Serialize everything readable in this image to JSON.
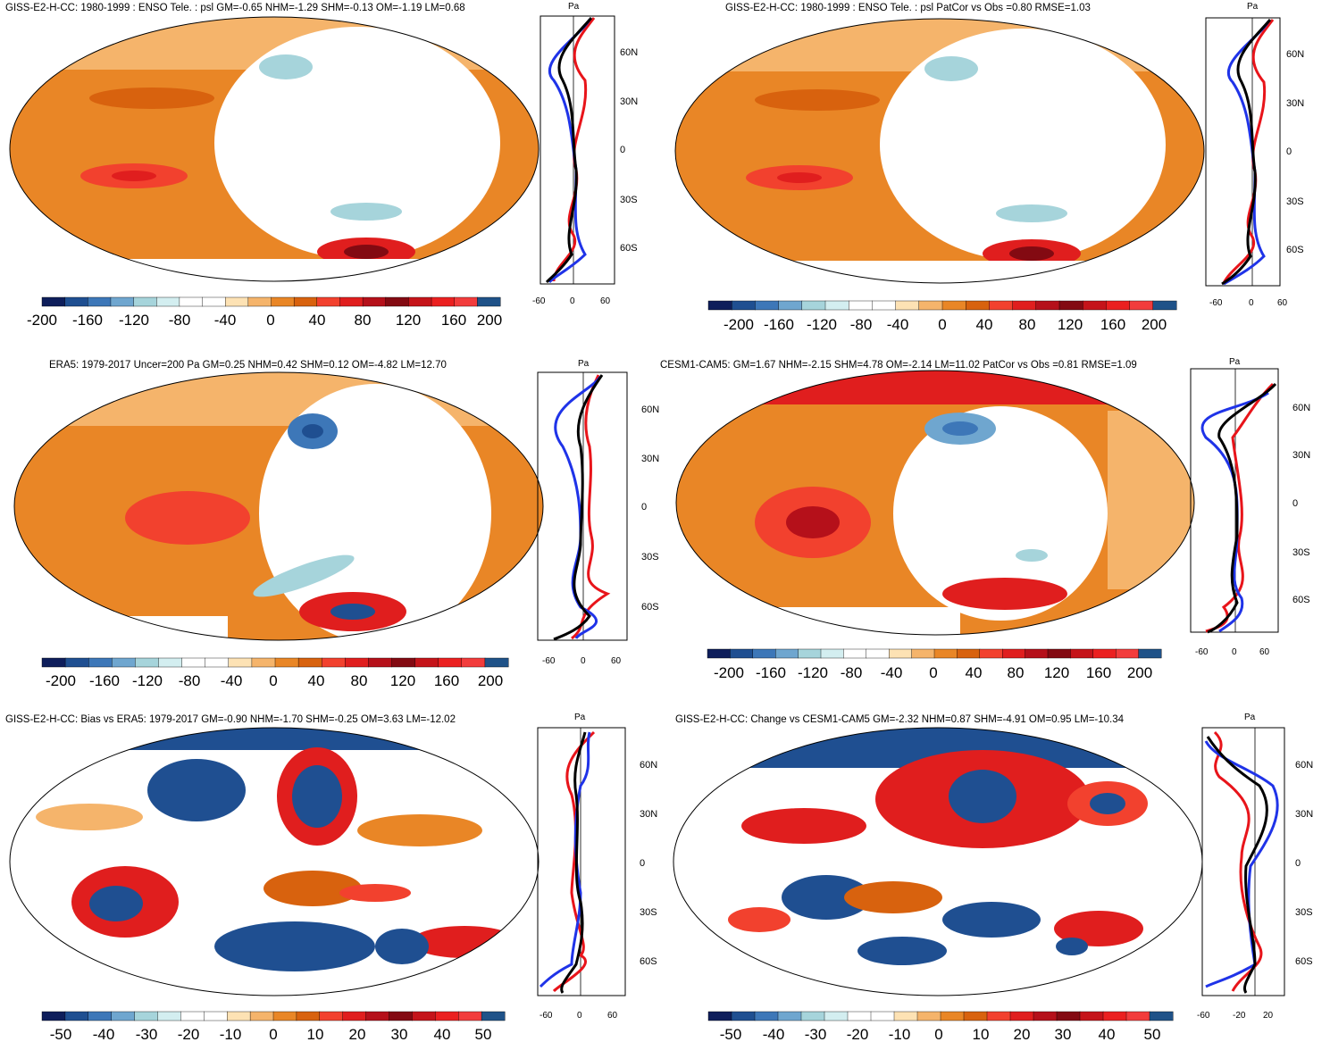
{
  "figure": {
    "description_units": "Pa"
  },
  "colorbars": {
    "large": {
      "labels": [
        "-200",
        "-160",
        "-120",
        "-80",
        "-40",
        "0",
        "40",
        "80",
        "120",
        "160",
        "200"
      ],
      "colors": [
        "#0e1e5b",
        "#1f4f91",
        "#3d77b8",
        "#6fa6cf",
        "#a6d4db",
        "#d3eef0",
        "#ffffff",
        "#ffffff",
        "#fde2b4",
        "#f5b46b",
        "#e98626",
        "#d8620e",
        "#f2412e",
        "#e01e1e",
        "#b5101a",
        "#830a12",
        "#c5141a",
        "#eb2020",
        "#f23c3c",
        "#1f5288"
      ]
    },
    "small": {
      "labels": [
        "-50",
        "-40",
        "-30",
        "-20",
        "-10",
        "0",
        "10",
        "20",
        "30",
        "40",
        "50"
      ],
      "colors": [
        "#0e1e5b",
        "#1f4f91",
        "#3d77b8",
        "#6fa6cf",
        "#a6d4db",
        "#d3eef0",
        "#ffffff",
        "#ffffff",
        "#fde2b4",
        "#f5b46b",
        "#e98626",
        "#d8620e",
        "#f2412e",
        "#e01e1e",
        "#b5101a",
        "#830a12",
        "#c5141a",
        "#eb2020",
        "#f23c3c",
        "#1f5288"
      ]
    }
  },
  "chart_data": [
    {
      "type": "heatmap",
      "title": "GISS-E2-H-CC: 1980-1999 : ENSO Tele. : psl GM=-0.65 NHM=-1.29 SHM=-0.13 OM=-1.19 LM=0.68",
      "colorbar": "large",
      "zonal_profile": {
        "type": "line",
        "units_label": "Pa",
        "x_ticks": [
          "-60",
          "0",
          "60"
        ],
        "lat_ticks": [
          "60N",
          "30N",
          "0",
          "30S",
          "60S"
        ],
        "series": [
          {
            "name": "blue",
            "color": "#1f33e8"
          },
          {
            "name": "red",
            "color": "#e8141a"
          },
          {
            "name": "black",
            "color": "#000000"
          }
        ]
      }
    },
    {
      "type": "heatmap",
      "title": "GISS-E2-H-CC: 1980-1999 : ENSO Tele. : psl PatCor vs Obs =0.80 RMSE=1.03",
      "colorbar": "large",
      "zonal_profile": {
        "type": "line",
        "units_label": "Pa",
        "x_ticks": [
          "-60",
          "0",
          "60"
        ],
        "lat_ticks": [
          "60N",
          "30N",
          "0",
          "30S",
          "60S"
        ],
        "series": [
          {
            "name": "blue",
            "color": "#1f33e8"
          },
          {
            "name": "red",
            "color": "#e8141a"
          },
          {
            "name": "black",
            "color": "#000000"
          }
        ]
      }
    },
    {
      "type": "heatmap",
      "title": "ERA5: 1979-2017 Uncer=200 Pa GM=0.25 NHM=0.42 SHM=0.12 OM=-4.82 LM=12.70",
      "colorbar": "large",
      "zonal_profile": {
        "type": "line",
        "units_label": "Pa",
        "x_ticks": [
          "-60",
          "0",
          "60"
        ],
        "lat_ticks": [
          "60N",
          "30N",
          "0",
          "30S",
          "60S"
        ],
        "series": [
          {
            "name": "blue",
            "color": "#1f33e8"
          },
          {
            "name": "red",
            "color": "#e8141a"
          },
          {
            "name": "black",
            "color": "#000000"
          }
        ]
      }
    },
    {
      "type": "heatmap",
      "title": "CESM1-CAM5: GM=1.67 NHM=-2.15 SHM=4.78 OM=-2.14 LM=11.02 PatCor vs Obs =0.81 RMSE=1.09",
      "colorbar": "large",
      "zonal_profile": {
        "type": "line",
        "units_label": "Pa",
        "x_ticks": [
          "-60",
          "0",
          "60"
        ],
        "lat_ticks": [
          "60N",
          "30N",
          "0",
          "30S",
          "60S"
        ],
        "series": [
          {
            "name": "blue",
            "color": "#1f33e8"
          },
          {
            "name": "red",
            "color": "#e8141a"
          },
          {
            "name": "black",
            "color": "#000000"
          }
        ]
      }
    },
    {
      "type": "heatmap",
      "title": "GISS-E2-H-CC: Bias vs ERA5: 1979-2017 GM=-0.90 NHM=-1.70 SHM=-0.25 OM=3.63 LM=-12.02",
      "colorbar": "small",
      "zonal_profile": {
        "type": "line",
        "units_label": "Pa",
        "x_ticks": [
          "-60",
          "0",
          "60"
        ],
        "lat_ticks": [
          "60N",
          "30N",
          "0",
          "30S",
          "60S"
        ],
        "series": [
          {
            "name": "blue",
            "color": "#1f33e8"
          },
          {
            "name": "red",
            "color": "#e8141a"
          },
          {
            "name": "black",
            "color": "#000000"
          }
        ]
      }
    },
    {
      "type": "heatmap",
      "title": "GISS-E2-H-CC: Change vs CESM1-CAM5 GM=-2.32 NHM=0.87 SHM=-4.91 OM=0.95 LM=-10.34",
      "colorbar": "small",
      "zonal_profile": {
        "type": "line",
        "units_label": "Pa",
        "x_ticks": [
          "-60",
          "-20",
          "20"
        ],
        "lat_ticks": [
          "60N",
          "30N",
          "0",
          "30S",
          "60S"
        ],
        "series": [
          {
            "name": "blue",
            "color": "#1f33e8"
          },
          {
            "name": "red",
            "color": "#e8141a"
          },
          {
            "name": "black",
            "color": "#000000"
          }
        ]
      }
    }
  ]
}
